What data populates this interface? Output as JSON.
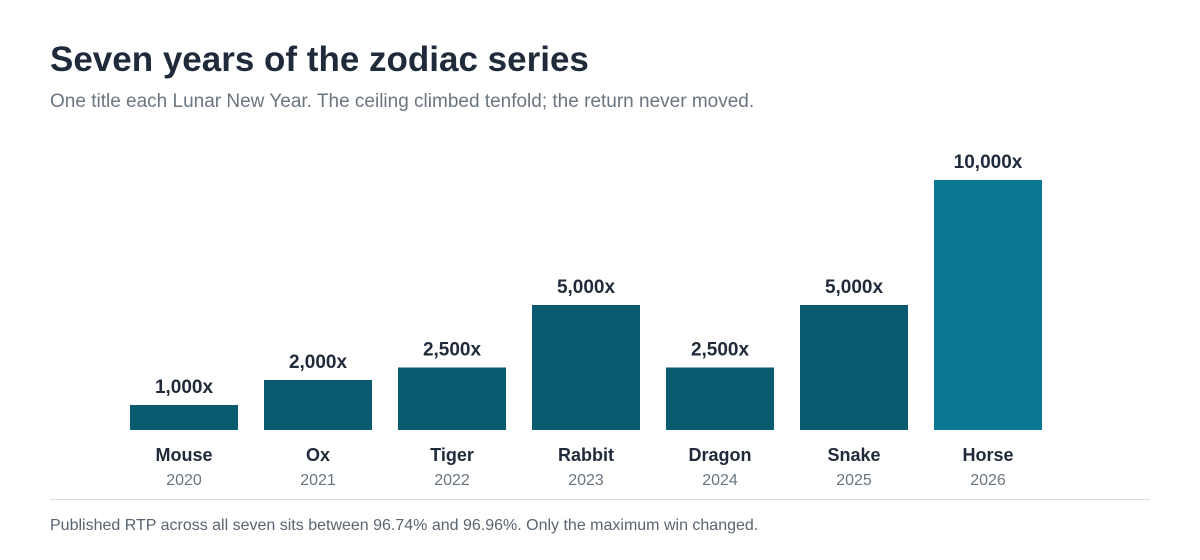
{
  "header": {
    "title": "Seven years of the zodiac series",
    "subtitle": "One title each Lunar New Year. The ceiling climbed tenfold; the return never moved."
  },
  "footer": {
    "note": "Published RTP across all seven sits between 96.74% and 96.96%. Only the maximum win changed."
  },
  "colors": {
    "bar": "#0a5a70",
    "bar_highlight": "#0b7893",
    "value_label": "#1f2a3a",
    "category_label": "#1f2a3a",
    "year_label": "#6b7580"
  },
  "chart_data": {
    "type": "bar",
    "categories": [
      "Mouse",
      "Ox",
      "Tiger",
      "Rabbit",
      "Dragon",
      "Snake",
      "Horse"
    ],
    "years": [
      "2020",
      "2021",
      "2022",
      "2023",
      "2024",
      "2025",
      "2026"
    ],
    "values": [
      1000,
      2000,
      2500,
      5000,
      2500,
      5000,
      10000
    ],
    "value_labels": [
      "1,000x",
      "2,000x",
      "2,500x",
      "5,000x",
      "2,500x",
      "5,000x",
      "10,000x"
    ],
    "highlight_index": 6,
    "ylim": [
      0,
      10000
    ],
    "grid": false,
    "legend": "none"
  }
}
